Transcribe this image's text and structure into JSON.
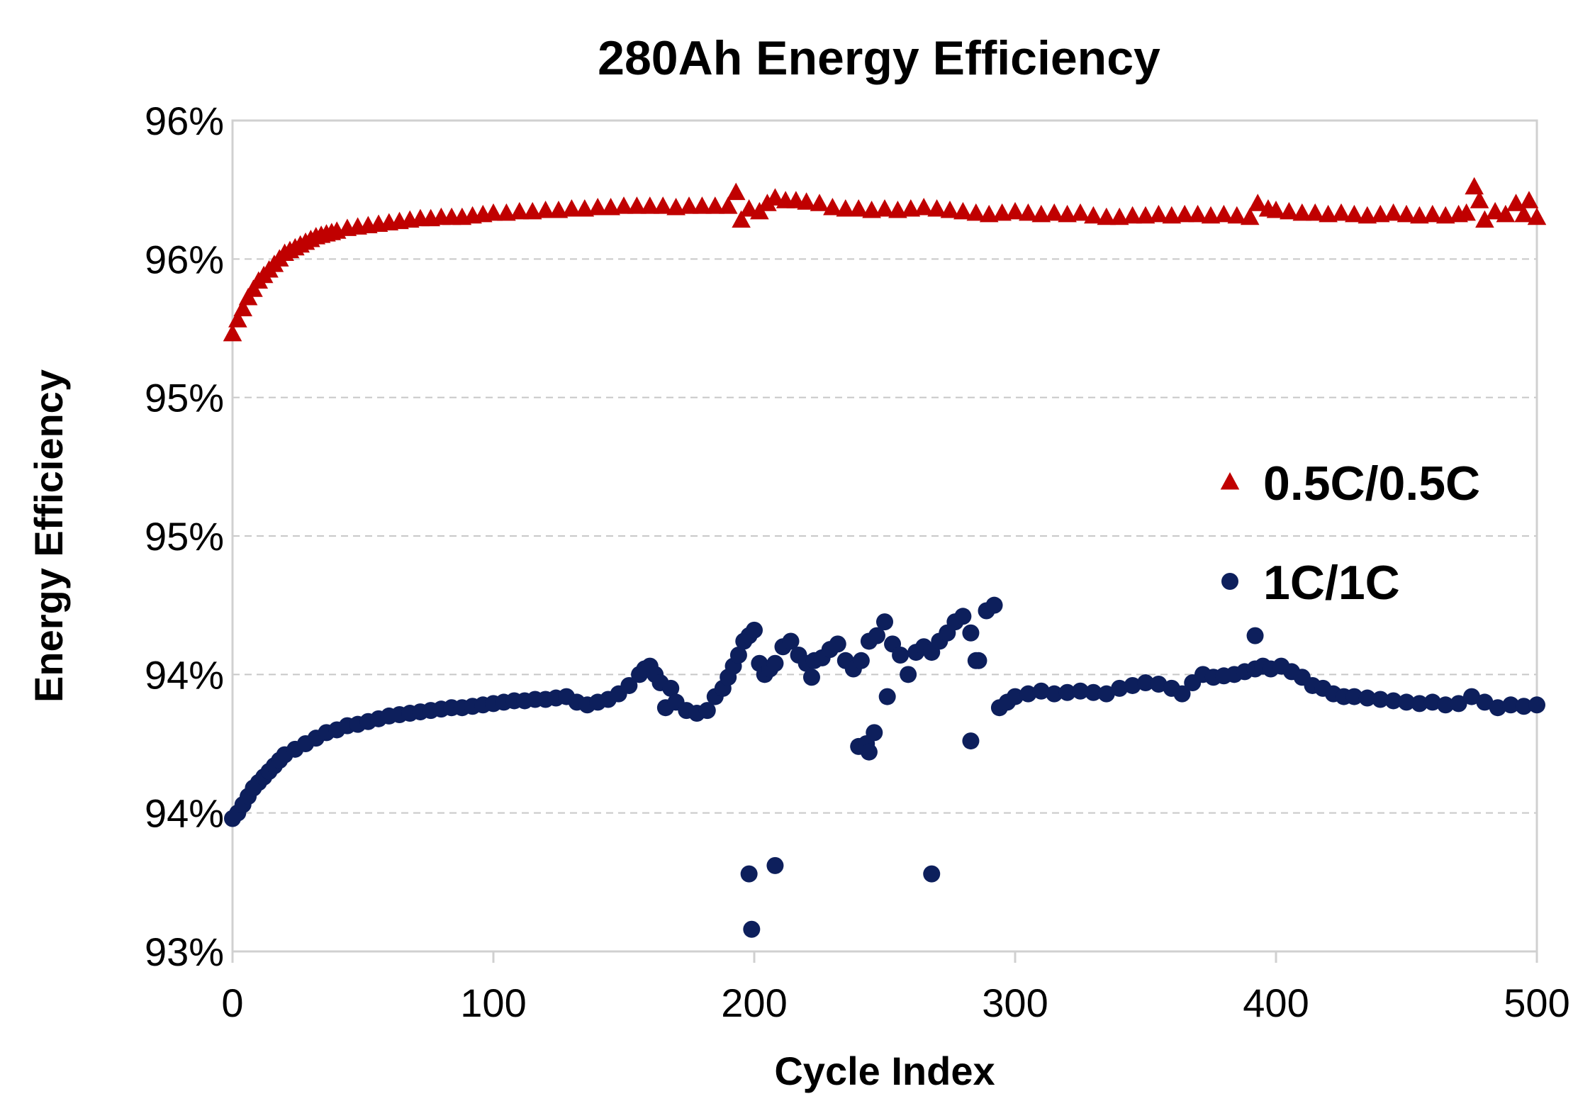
{
  "chart_data": {
    "type": "scatter",
    "title": "280Ah Energy Efficiency",
    "xlabel": "Cycle Index",
    "ylabel": "Energy Efficiency",
    "xlim": [
      0,
      500
    ],
    "ylim": [
      93,
      96
    ],
    "x_ticks": [
      0,
      100,
      200,
      300,
      400,
      500
    ],
    "x_tick_labels": [
      "0",
      "100",
      "200",
      "300",
      "400",
      "500"
    ],
    "y_ticks": [
      93,
      93.5,
      94,
      94.5,
      95,
      95.5,
      96
    ],
    "y_tick_labels": [
      "93%",
      "94%",
      "94%",
      "95%",
      "95%",
      "96%",
      "96%"
    ],
    "grid": "horizontal-dashed",
    "legend_position": "right",
    "colors": {
      "series_a": "#C00000",
      "series_b": "#0D1F5C",
      "grid": "#C8C8C8",
      "frame": "#D0D0D0"
    },
    "series": [
      {
        "name": "0.5C/0.5C",
        "marker": "triangle",
        "color": "#C00000",
        "points": [
          [
            0,
            95.23
          ],
          [
            2,
            95.28
          ],
          [
            4,
            95.32
          ],
          [
            6,
            95.36
          ],
          [
            8,
            95.39
          ],
          [
            10,
            95.42
          ],
          [
            12,
            95.44
          ],
          [
            14,
            95.46
          ],
          [
            16,
            95.48
          ],
          [
            18,
            95.5
          ],
          [
            20,
            95.52
          ],
          [
            22,
            95.53
          ],
          [
            24,
            95.54
          ],
          [
            26,
            95.55
          ],
          [
            28,
            95.56
          ],
          [
            30,
            95.57
          ],
          [
            32,
            95.58
          ],
          [
            34,
            95.585
          ],
          [
            36,
            95.59
          ],
          [
            38,
            95.595
          ],
          [
            40,
            95.6
          ],
          [
            44,
            95.61
          ],
          [
            48,
            95.615
          ],
          [
            52,
            95.62
          ],
          [
            56,
            95.625
          ],
          [
            60,
            95.63
          ],
          [
            64,
            95.635
          ],
          [
            68,
            95.64
          ],
          [
            72,
            95.645
          ],
          [
            76,
            95.645
          ],
          [
            80,
            95.65
          ],
          [
            84,
            95.65
          ],
          [
            88,
            95.65
          ],
          [
            92,
            95.655
          ],
          [
            96,
            95.66
          ],
          [
            100,
            95.665
          ],
          [
            105,
            95.665
          ],
          [
            110,
            95.67
          ],
          [
            115,
            95.67
          ],
          [
            120,
            95.675
          ],
          [
            125,
            95.675
          ],
          [
            130,
            95.68
          ],
          [
            135,
            95.68
          ],
          [
            140,
            95.685
          ],
          [
            145,
            95.685
          ],
          [
            150,
            95.69
          ],
          [
            155,
            95.69
          ],
          [
            160,
            95.69
          ],
          [
            165,
            95.69
          ],
          [
            170,
            95.685
          ],
          [
            175,
            95.69
          ],
          [
            180,
            95.69
          ],
          [
            185,
            95.69
          ],
          [
            190,
            95.69
          ],
          [
            193,
            95.74
          ],
          [
            195,
            95.64
          ],
          [
            198,
            95.68
          ],
          [
            202,
            95.67
          ],
          [
            205,
            95.7
          ],
          [
            208,
            95.72
          ],
          [
            212,
            95.71
          ],
          [
            216,
            95.71
          ],
          [
            220,
            95.705
          ],
          [
            225,
            95.7
          ],
          [
            230,
            95.685
          ],
          [
            235,
            95.68
          ],
          [
            240,
            95.68
          ],
          [
            245,
            95.675
          ],
          [
            250,
            95.68
          ],
          [
            255,
            95.675
          ],
          [
            260,
            95.68
          ],
          [
            265,
            95.685
          ],
          [
            270,
            95.68
          ],
          [
            275,
            95.675
          ],
          [
            280,
            95.67
          ],
          [
            285,
            95.665
          ],
          [
            290,
            95.66
          ],
          [
            295,
            95.665
          ],
          [
            300,
            95.67
          ],
          [
            305,
            95.665
          ],
          [
            310,
            95.66
          ],
          [
            315,
            95.665
          ],
          [
            320,
            95.66
          ],
          [
            325,
            95.665
          ],
          [
            330,
            95.655
          ],
          [
            335,
            95.65
          ],
          [
            340,
            95.65
          ],
          [
            345,
            95.655
          ],
          [
            350,
            95.655
          ],
          [
            355,
            95.66
          ],
          [
            360,
            95.655
          ],
          [
            365,
            95.66
          ],
          [
            370,
            95.66
          ],
          [
            375,
            95.655
          ],
          [
            380,
            95.66
          ],
          [
            385,
            95.655
          ],
          [
            390,
            95.65
          ],
          [
            393,
            95.7
          ],
          [
            397,
            95.68
          ],
          [
            400,
            95.675
          ],
          [
            405,
            95.67
          ],
          [
            410,
            95.665
          ],
          [
            415,
            95.665
          ],
          [
            420,
            95.66
          ],
          [
            425,
            95.665
          ],
          [
            430,
            95.66
          ],
          [
            435,
            95.655
          ],
          [
            440,
            95.66
          ],
          [
            445,
            95.665
          ],
          [
            450,
            95.66
          ],
          [
            455,
            95.655
          ],
          [
            460,
            95.66
          ],
          [
            465,
            95.655
          ],
          [
            470,
            95.66
          ],
          [
            473,
            95.665
          ],
          [
            476,
            95.76
          ],
          [
            478,
            95.71
          ],
          [
            480,
            95.64
          ],
          [
            484,
            95.67
          ],
          [
            488,
            95.66
          ],
          [
            492,
            95.7
          ],
          [
            495,
            95.66
          ],
          [
            497,
            95.71
          ],
          [
            500,
            95.65
          ]
        ]
      },
      {
        "name": "1C/1C",
        "marker": "circle",
        "color": "#0D1F5C",
        "points": [
          [
            0,
            93.48
          ],
          [
            2,
            93.5
          ],
          [
            4,
            93.53
          ],
          [
            6,
            93.56
          ],
          [
            8,
            93.59
          ],
          [
            10,
            93.61
          ],
          [
            12,
            93.63
          ],
          [
            14,
            93.65
          ],
          [
            16,
            93.67
          ],
          [
            18,
            93.69
          ],
          [
            20,
            93.71
          ],
          [
            24,
            93.73
          ],
          [
            28,
            93.75
          ],
          [
            32,
            93.77
          ],
          [
            36,
            93.79
          ],
          [
            40,
            93.8
          ],
          [
            44,
            93.815
          ],
          [
            48,
            93.82
          ],
          [
            52,
            93.83
          ],
          [
            56,
            93.84
          ],
          [
            60,
            93.85
          ],
          [
            64,
            93.855
          ],
          [
            68,
            93.86
          ],
          [
            72,
            93.865
          ],
          [
            76,
            93.87
          ],
          [
            80,
            93.875
          ],
          [
            84,
            93.88
          ],
          [
            88,
            93.88
          ],
          [
            92,
            93.885
          ],
          [
            96,
            93.89
          ],
          [
            100,
            93.895
          ],
          [
            104,
            93.9
          ],
          [
            108,
            93.905
          ],
          [
            112,
            93.905
          ],
          [
            116,
            93.91
          ],
          [
            120,
            93.91
          ],
          [
            124,
            93.915
          ],
          [
            128,
            93.92
          ],
          [
            132,
            93.9
          ],
          [
            136,
            93.89
          ],
          [
            140,
            93.9
          ],
          [
            144,
            93.91
          ],
          [
            148,
            93.93
          ],
          [
            152,
            93.96
          ],
          [
            156,
            94.0
          ],
          [
            158,
            94.02
          ],
          [
            160,
            94.03
          ],
          [
            162,
            94.0
          ],
          [
            164,
            93.97
          ],
          [
            166,
            93.88
          ],
          [
            168,
            93.95
          ],
          [
            170,
            93.9
          ],
          [
            174,
            93.87
          ],
          [
            178,
            93.86
          ],
          [
            182,
            93.87
          ],
          [
            185,
            93.92
          ],
          [
            188,
            93.95
          ],
          [
            190,
            93.99
          ],
          [
            192,
            94.03
          ],
          [
            194,
            94.07
          ],
          [
            196,
            94.12
          ],
          [
            198,
            94.14
          ],
          [
            200,
            94.16
          ],
          [
            202,
            94.04
          ],
          [
            204,
            94.0
          ],
          [
            206,
            94.02
          ],
          [
            208,
            94.04
          ],
          [
            211,
            94.1
          ],
          [
            214,
            94.12
          ],
          [
            217,
            94.07
          ],
          [
            220,
            94.04
          ],
          [
            223,
            94.05
          ],
          [
            226,
            94.06
          ],
          [
            229,
            94.09
          ],
          [
            232,
            94.11
          ],
          [
            235,
            94.05
          ],
          [
            238,
            94.02
          ],
          [
            241,
            94.05
          ],
          [
            244,
            94.12
          ],
          [
            247,
            94.14
          ],
          [
            250,
            94.19
          ],
          [
            253,
            94.11
          ],
          [
            256,
            94.07
          ],
          [
            259,
            94.0
          ],
          [
            262,
            94.08
          ],
          [
            265,
            94.1
          ],
          [
            268,
            94.08
          ],
          [
            271,
            94.12
          ],
          [
            274,
            94.15
          ],
          [
            277,
            94.19
          ],
          [
            280,
            94.21
          ],
          [
            283,
            94.15
          ],
          [
            286,
            94.05
          ],
          [
            289,
            94.23
          ],
          [
            292,
            94.25
          ],
          [
            294,
            93.88
          ],
          [
            297,
            93.9
          ],
          [
            300,
            93.92
          ],
          [
            305,
            93.93
          ],
          [
            310,
            93.94
          ],
          [
            315,
            93.93
          ],
          [
            320,
            93.935
          ],
          [
            325,
            93.94
          ],
          [
            330,
            93.935
          ],
          [
            335,
            93.93
          ],
          [
            340,
            93.95
          ],
          [
            345,
            93.96
          ],
          [
            350,
            93.97
          ],
          [
            355,
            93.965
          ],
          [
            360,
            93.95
          ],
          [
            364,
            93.93
          ],
          [
            368,
            93.97
          ],
          [
            372,
            94.0
          ],
          [
            376,
            93.99
          ],
          [
            380,
            93.995
          ],
          [
            384,
            94.0
          ],
          [
            388,
            94.01
          ],
          [
            392,
            94.02
          ],
          [
            395,
            94.03
          ],
          [
            398,
            94.02
          ],
          [
            402,
            94.03
          ],
          [
            406,
            94.01
          ],
          [
            410,
            93.99
          ],
          [
            414,
            93.96
          ],
          [
            418,
            93.95
          ],
          [
            422,
            93.93
          ],
          [
            426,
            93.92
          ],
          [
            430,
            93.92
          ],
          [
            435,
            93.915
          ],
          [
            440,
            93.91
          ],
          [
            445,
            93.905
          ],
          [
            450,
            93.9
          ],
          [
            455,
            93.895
          ],
          [
            460,
            93.9
          ],
          [
            465,
            93.89
          ],
          [
            470,
            93.895
          ],
          [
            475,
            93.92
          ],
          [
            480,
            93.9
          ],
          [
            485,
            93.88
          ],
          [
            490,
            93.89
          ],
          [
            495,
            93.885
          ],
          [
            500,
            93.89
          ],
          [
            198,
            93.28
          ],
          [
            199,
            93.08
          ],
          [
            208,
            93.31
          ],
          [
            222,
            93.99
          ],
          [
            240,
            93.74
          ],
          [
            243,
            93.75
          ],
          [
            244,
            93.72
          ],
          [
            246,
            93.79
          ],
          [
            251,
            93.92
          ],
          [
            268,
            93.28
          ],
          [
            283,
            93.76
          ],
          [
            285,
            94.05
          ],
          [
            392,
            94.14
          ]
        ]
      }
    ]
  }
}
